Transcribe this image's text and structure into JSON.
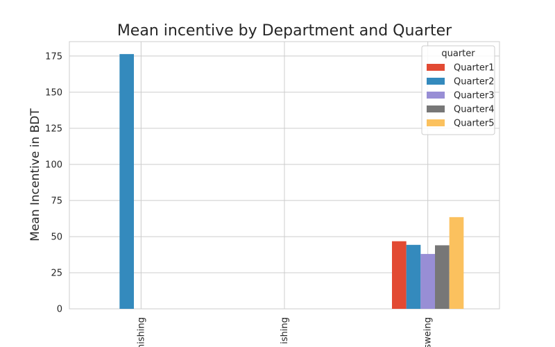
{
  "chart_data": {
    "type": "bar",
    "title": "Mean incentive by Department and Quarter",
    "xlabel": "",
    "ylabel": "Mean Incentive in BDT",
    "categories": [
      "finishing",
      "finishing",
      "sweing"
    ],
    "category_display": [
      "nishing",
      "ishing",
      "sweing"
    ],
    "series": [
      {
        "name": "Quarter1",
        "color": "#E24A33",
        "values": [
          0,
          0,
          46.8
        ]
      },
      {
        "name": "Quarter2",
        "color": "#348ABD",
        "values": [
          176.4,
          0,
          44.3
        ]
      },
      {
        "name": "Quarter3",
        "color": "#988ED5",
        "values": [
          0,
          0,
          38.0
        ]
      },
      {
        "name": "Quarter4",
        "color": "#777777",
        "values": [
          0,
          0,
          44.0
        ]
      },
      {
        "name": "Quarter5",
        "color": "#FBC15E",
        "values": [
          0,
          0,
          63.5
        ]
      }
    ],
    "ylim": [
      0,
      185
    ],
    "yticks": [
      0,
      25,
      50,
      75,
      100,
      125,
      150,
      175
    ],
    "grid": true,
    "legend": {
      "title": "quarter",
      "placement": "top-right"
    }
  }
}
